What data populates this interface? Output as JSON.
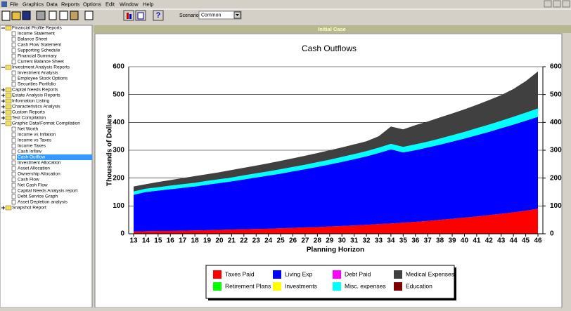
{
  "menu": [
    "File",
    "Graphics",
    "Data",
    "Reports",
    "Options",
    "Edit",
    "Window",
    "Help"
  ],
  "toolbar": {
    "scenario_label": "Scenario:",
    "scenario_value": "Common"
  },
  "tree": [
    {
      "label": "Financial Profile Reports",
      "expanded": true,
      "children": [
        "Income Statement",
        "Balance Sheet",
        "Cash Flow Statement",
        "Supporting Schedule",
        "Financial Summary",
        "Current Balance Sheet"
      ]
    },
    {
      "label": "Investment Analysis Reports",
      "expanded": true,
      "children": [
        "Investment Analysis",
        "Employee Stock Options",
        "Securities Portfolio"
      ]
    },
    {
      "label": "Capital Needs Reports",
      "expanded": false,
      "children": []
    },
    {
      "label": "Estate Analysis Reports",
      "expanded": false,
      "children": []
    },
    {
      "label": "Information Listing",
      "expanded": false,
      "children": []
    },
    {
      "label": "Characteristics Analysis",
      "expanded": false,
      "children": []
    },
    {
      "label": "Custom Reports",
      "expanded": false,
      "children": []
    },
    {
      "label": "Text Compilation",
      "expanded": false,
      "children": []
    },
    {
      "label": "Graphic Data/Format Compilation",
      "expanded": true,
      "children": [
        "Net Worth",
        "Income vs Inflation",
        "Income vs Taxes",
        "Income Taxes",
        "Cash Inflow",
        "Cash Outflow",
        "Investment Allocation",
        "Asset Allocation",
        "Ownership Allocation",
        "Cash Flow",
        "Net Cash Flow",
        "Capital Needs Analysis report",
        "Debt Service Graph",
        "Asset Depletion analysis"
      ]
    },
    {
      "label": "Snapshot Report",
      "expanded": false,
      "children": []
    }
  ],
  "selected": "Cash Outflow",
  "panel_title": "Initial Case",
  "chart_data": {
    "type": "stacked_area",
    "title": "Cash Outflows",
    "y_label": "Thousands of Dollars",
    "x_label": "Planning Horizon",
    "categories": [
      "13",
      "14",
      "15",
      "16",
      "17",
      "18",
      "19",
      "20",
      "21",
      "22",
      "23",
      "24",
      "25",
      "26",
      "27",
      "28",
      "29",
      "30",
      "31",
      "32",
      "33",
      "34",
      "35",
      "36",
      "37",
      "38",
      "39",
      "40",
      "41",
      "42",
      "43",
      "44",
      "45",
      "46"
    ],
    "ylim": [
      0,
      600
    ],
    "yticks": [
      0,
      100,
      200,
      300,
      400,
      500,
      600
    ],
    "y2lim": [
      0,
      600
    ],
    "y2ticks": [
      0,
      100,
      200,
      300,
      400,
      500,
      600
    ],
    "grid": true,
    "series": [
      {
        "name": "Taxes Paid",
        "color": "#ff0000",
        "values": [
          8,
          9,
          10,
          10,
          11,
          12,
          13,
          14,
          15,
          16,
          17,
          18,
          20,
          21,
          23,
          24,
          26,
          28,
          30,
          32,
          35,
          37,
          40,
          43,
          46,
          50,
          54,
          58,
          62,
          67,
          72,
          77,
          83,
          90
        ]
      },
      {
        "name": "Living Exp",
        "color": "#0000ff",
        "values": [
          132,
          141,
          145,
          150,
          154,
          158,
          163,
          168,
          173,
          179,
          185,
          191,
          196,
          203,
          209,
          216,
          223,
          230,
          238,
          246,
          255,
          266,
          252,
          257,
          264,
          270,
          277,
          284,
          292,
          299,
          307,
          315,
          323,
          330
        ]
      },
      {
        "name": "Debt Paid",
        "color": "#ff00ff",
        "values": [
          0,
          0,
          0,
          0,
          0,
          0,
          0,
          0,
          0,
          0,
          0,
          0,
          0,
          0,
          0,
          0,
          0,
          0,
          0,
          0,
          0,
          0,
          0,
          0,
          0,
          0,
          0,
          0,
          0,
          0,
          0,
          0,
          0,
          0
        ]
      },
      {
        "name": "Retirement Plans",
        "color": "#00ff00",
        "values": [
          0,
          0,
          0,
          0,
          0,
          0,
          0,
          0,
          0,
          0,
          0,
          0,
          0,
          0,
          0,
          0,
          0,
          0,
          0,
          0,
          0,
          0,
          0,
          0,
          0,
          0,
          0,
          0,
          0,
          0,
          0,
          0,
          0,
          0
        ]
      },
      {
        "name": "Investments",
        "color": "#ffff00",
        "values": [
          0,
          0,
          0,
          0,
          0,
          0,
          0,
          0,
          0,
          0,
          0,
          0,
          0,
          0,
          0,
          0,
          0,
          0,
          0,
          0,
          0,
          0,
          0,
          0,
          0,
          0,
          0,
          0,
          0,
          0,
          0,
          0,
          0,
          0
        ]
      },
      {
        "name": "Misc. expenses",
        "color": "#00ffff",
        "values": [
          12,
          12,
          12,
          13,
          13,
          13,
          14,
          14,
          14,
          15,
          15,
          15,
          16,
          16,
          16,
          17,
          17,
          18,
          18,
          19,
          19,
          20,
          20,
          21,
          21,
          22,
          23,
          24,
          25,
          26,
          27,
          28,
          29,
          30
        ]
      },
      {
        "name": "Education",
        "color": "#800000",
        "values": [
          0,
          0,
          0,
          0,
          0,
          0,
          0,
          0,
          0,
          0,
          0,
          0,
          0,
          0,
          0,
          0,
          0,
          0,
          0,
          0,
          0,
          0,
          0,
          0,
          0,
          0,
          0,
          0,
          0,
          0,
          0,
          0,
          0,
          0
        ]
      },
      {
        "name": "Medical Expenses",
        "color": "#404040",
        "values": [
          18,
          16,
          19,
          20,
          22,
          24,
          24,
          25,
          27,
          27,
          28,
          29,
          30,
          31,
          32,
          33,
          34,
          34,
          35,
          35,
          41,
          62,
          63,
          69,
          72,
          76,
          78,
          81,
          84,
          88,
          92,
          100,
          113,
          133
        ]
      }
    ]
  }
}
